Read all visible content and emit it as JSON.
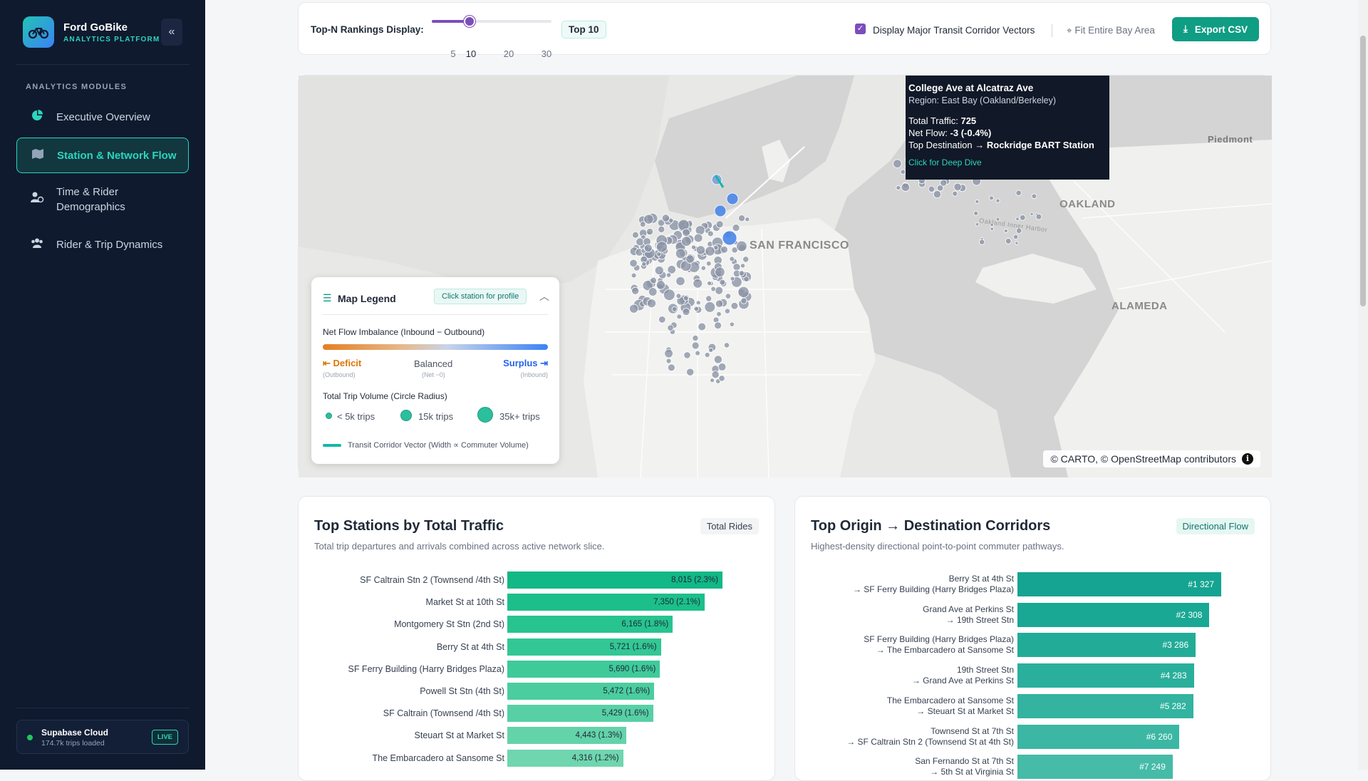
{
  "brand": {
    "name": "Ford GoBike",
    "subtitle": "ANALYTICS PLATFORM",
    "logo_icon": "bicycle-icon"
  },
  "sidebar": {
    "section_label": "ANALYTICS MODULES",
    "items": [
      {
        "label": "Executive Overview",
        "icon": "pie-chart-icon",
        "active": false
      },
      {
        "label": "Station & Network Flow",
        "icon": "map-icon",
        "active": true
      },
      {
        "label": "Time & Rider Demographics",
        "icon": "users-clock-icon",
        "active": false
      },
      {
        "label": "Rider & Trip Dynamics",
        "icon": "users-group-icon",
        "active": false
      }
    ],
    "collapse_icon": "double-chevron-left-icon",
    "status": {
      "title": "Supabase Cloud",
      "subtitle": "174.7k trips loaded",
      "badge": "LIVE",
      "color": "#22c55e"
    }
  },
  "toolbar": {
    "rankings_label": "Top-N Rankings Display:",
    "slider_ticks": [
      "5",
      "10",
      "20",
      "30"
    ],
    "slider_value": 10,
    "topn_badge": "Top 10",
    "corridor_label": "Display Major Transit Corridor Vectors",
    "corridor_checked": true,
    "fit_label": "Fit Entire Bay Area",
    "export_label": "Export CSV"
  },
  "map": {
    "places": [
      "Piedmont",
      "OAKLAND",
      "SAN FRANCISCO",
      "ALAMEDA",
      "Oakland Inner Harbor"
    ],
    "attribution": "© CARTO, © OpenStreetMap contributors",
    "info_icon": "i",
    "tooltip": {
      "title": "College Ave at Alcatraz Ave",
      "region": "Region: East Bay (Oakland/Berkeley)",
      "traffic_label": "Total Traffic:",
      "traffic_value": "725",
      "netflow_label": "Net Flow:",
      "netflow_value": "-3 (-0.4%)",
      "topdest_label": "Top Destination →",
      "topdest_value": "Rockridge BART Station",
      "link": "Click for Deep Dive"
    },
    "legend": {
      "title": "Map Legend",
      "pill": "Click station for profile",
      "flow_heading": "Net Flow Imbalance (Inbound − Outbound)",
      "deficit": "⇤ Deficit",
      "deficit_sub": "(Outbound)",
      "balanced": "Balanced",
      "balanced_sub": "(Net ~0)",
      "surplus": "Surplus ⇥",
      "surplus_sub": "(Inbound)",
      "volume_heading": "Total Trip Volume (Circle Radius)",
      "vol_small": "< 5k trips",
      "vol_mid": "15k trips",
      "vol_large": "35k+ trips",
      "vector_label": "Transit Corridor Vector (Width ∝ Commuter Volume)"
    }
  },
  "stations_card": {
    "title": "Top Stations by Total Traffic",
    "subtitle": "Total trip departures and arrivals combined across active network slice.",
    "badge": "Total Rides"
  },
  "corridors_card": {
    "title": "Top Origin → Destination Corridors",
    "subtitle": "Highest-density directional point-to-point commuter pathways.",
    "badge": "Directional Flow"
  },
  "chart_data": [
    {
      "type": "bar",
      "title": "Top Stations by Total Traffic",
      "categories": [
        "SF Caltrain Stn 2 (Townsend /4th St)",
        "Market St at 10th St",
        "Montgomery St Stn (2nd St)",
        "Berry St at 4th St",
        "SF Ferry Building (Harry Bridges Plaza)",
        "Powell St Stn (4th St)",
        "SF Caltrain (Townsend /4th St)",
        "Steuart St at Market St",
        "The Embarcadero at Sansome St"
      ],
      "values": [
        8015,
        7350,
        6165,
        5721,
        5690,
        5472,
        5429,
        4443,
        4316
      ],
      "labels": [
        "8,015 (2.3%)",
        "7,350 (2.1%)",
        "6,165 (1.8%)",
        "5,721 (1.6%)",
        "5,690 (1.6%)",
        "5,472 (1.6%)",
        "5,429 (1.6%)",
        "4,443 (1.3%)",
        "4,316 (1.2%)"
      ],
      "colors": [
        "#12b886",
        "#1cbf8a",
        "#27c48f",
        "#33c795",
        "#3fca9a",
        "#4bcd9f",
        "#57d0a5",
        "#63d3aa",
        "#6fd6af"
      ]
    },
    {
      "type": "bar",
      "title": "Top Origin → Destination Corridors",
      "categories": [
        [
          "Berry St at 4th St",
          "→ SF Ferry Building (Harry Bridges Plaza)"
        ],
        [
          "Grand Ave at Perkins St",
          "→ 19th Street Stn"
        ],
        [
          "SF Ferry Building (Harry Bridges Plaza)",
          "→ The Embarcadero at Sansome St"
        ],
        [
          "19th Street Stn",
          "→ Grand Ave at Perkins St"
        ],
        [
          "The Embarcadero at Sansome St",
          "→ Steuart St at Market St"
        ],
        [
          "Townsend St at 7th St",
          "→ SF Caltrain Stn 2  (Townsend St at 4th St)"
        ],
        [
          "San Fernando St at 7th St",
          "→ 5th St at Virginia St"
        ]
      ],
      "values": [
        327,
        308,
        286,
        283,
        282,
        260,
        249
      ],
      "labels": [
        "#1  327",
        "#2  308",
        "#3  286",
        "#4  283",
        "#5  282",
        "#6  260",
        "#7  249"
      ],
      "colors": [
        "#14a491",
        "#19a894",
        "#22ac98",
        "#2aaf9c",
        "#33b3a0",
        "#3cb7a4",
        "#45bba8"
      ]
    }
  ]
}
